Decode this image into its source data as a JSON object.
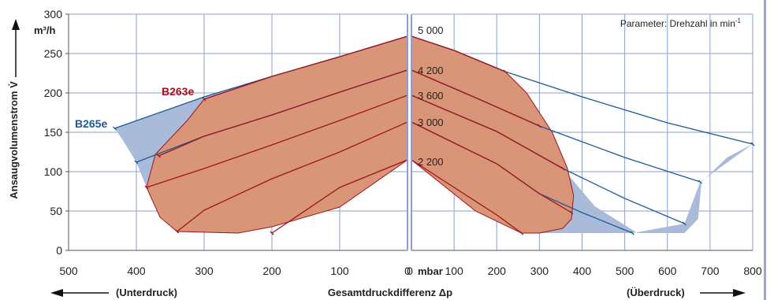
{
  "chart_data": {
    "type": "area",
    "ylabel": "Ansaugvolumenstrom V̇",
    "yunit": "m³/h",
    "xlabel": "Gesamtdruckdifferenz Δp",
    "xunit": "mbar",
    "ylim": [
      0,
      300
    ],
    "yticks": [
      0,
      50,
      100,
      150,
      200,
      250,
      300
    ],
    "left_panel": {
      "label": "(Unterdruck)",
      "xlim": [
        500,
        0
      ],
      "xticks": [
        500,
        400,
        300,
        200,
        100,
        0
      ]
    },
    "right_panel": {
      "label": "(Überdruck)",
      "xlim": [
        0,
        800
      ],
      "xticks": [
        0,
        100,
        200,
        300,
        400,
        500,
        600,
        700,
        800
      ]
    },
    "parameter_note": "Parameter: Drehzahl in min",
    "parameter_note_sup": "-1",
    "grid": true,
    "colors": {
      "B265e": "#1d5a9a",
      "B263e": "#a0141e",
      "B265e_fill": "#aabbd9",
      "B263e_fill": "#d99577",
      "grid": "#8f9fd0",
      "axis": "#555555"
    },
    "speed_labels": [
      {
        "text": "5 000",
        "y": 272
      },
      {
        "text": "4 200",
        "y": 229
      },
      {
        "text": "3 600",
        "y": 197
      },
      {
        "text": "3 000",
        "y": 163
      },
      {
        "text": "2 200",
        "y": 113
      }
    ],
    "series": [
      {
        "name": "B265e",
        "side": "vacuum",
        "region": [
          [
            0,
            272
          ],
          [
            100,
            246
          ],
          [
            200,
            221
          ],
          [
            300,
            195
          ],
          [
            432,
            155
          ],
          [
            420,
            140
          ],
          [
            400,
            112
          ],
          [
            385,
            80
          ],
          [
            365,
            42
          ],
          [
            340,
            24
          ],
          [
            250,
            22
          ],
          [
            200,
            30
          ],
          [
            100,
            55
          ],
          [
            0,
            115
          ]
        ],
        "lines": [
          {
            "speed": 5000,
            "points": [
              [
                0,
                272
              ],
              [
                100,
                246
              ],
              [
                200,
                221
              ],
              [
                300,
                195
              ],
              [
                432,
                155
              ]
            ]
          },
          {
            "speed": 4200,
            "points": [
              [
                0,
                229
              ],
              [
                100,
                201
              ],
              [
                200,
                172
              ],
              [
                300,
                145
              ],
              [
                400,
                112
              ]
            ]
          }
        ]
      },
      {
        "name": "B263e",
        "side": "vacuum",
        "region": [
          [
            0,
            272
          ],
          [
            100,
            246
          ],
          [
            200,
            221
          ],
          [
            300,
            192
          ],
          [
            325,
            165
          ],
          [
            372,
            122
          ],
          [
            385,
            80
          ],
          [
            365,
            42
          ],
          [
            340,
            24
          ],
          [
            250,
            22
          ],
          [
            200,
            30
          ],
          [
            100,
            55
          ],
          [
            0,
            115
          ]
        ],
        "lines": [
          {
            "speed": 5000,
            "points": [
              [
                0,
                272
              ],
              [
                100,
                246
              ],
              [
                200,
                221
              ],
              [
                300,
                192
              ]
            ]
          },
          {
            "speed": 4200,
            "points": [
              [
                0,
                229
              ],
              [
                100,
                201
              ],
              [
                200,
                172
              ],
              [
                300,
                145
              ],
              [
                367,
                120
              ]
            ]
          },
          {
            "speed": 3600,
            "points": [
              [
                0,
                197
              ],
              [
                100,
                165
              ],
              [
                200,
                134
              ],
              [
                300,
                104
              ],
              [
                385,
                80
              ]
            ]
          },
          {
            "speed": 3000,
            "points": [
              [
                0,
                163
              ],
              [
                100,
                125
              ],
              [
                200,
                91
              ],
              [
                300,
                51
              ],
              [
                340,
                24
              ]
            ]
          },
          {
            "speed": 2200,
            "points": [
              [
                0,
                115
              ],
              [
                100,
                80
              ],
              [
                200,
                22
              ]
            ]
          }
        ]
      },
      {
        "name": "B265e",
        "side": "pressure",
        "region": [
          [
            0,
            272
          ],
          [
            220,
            227
          ],
          [
            300,
            158
          ],
          [
            355,
            104
          ],
          [
            430,
            56
          ],
          [
            530,
            22
          ],
          [
            640,
            22
          ],
          [
            672,
            40
          ],
          [
            680,
            87
          ],
          [
            740,
            118
          ],
          [
            800,
            135
          ],
          [
            800,
            135
          ],
          [
            677,
            87
          ],
          [
            640,
            34
          ],
          [
            518,
            22
          ],
          [
            258,
            22
          ],
          [
            0,
            115
          ]
        ],
        "lines": [
          {
            "speed": 5000,
            "points": [
              [
                0,
                272
              ],
              [
                100,
                254
              ],
              [
                220,
                227
              ],
              [
                400,
                195
              ],
              [
                600,
                162
              ],
              [
                800,
                135
              ]
            ]
          },
          {
            "speed": 4200,
            "points": [
              [
                0,
                229
              ],
              [
                150,
                194
              ],
              [
                300,
                158
              ],
              [
                500,
                118
              ],
              [
                677,
                87
              ]
            ]
          },
          {
            "speed": 3600,
            "points": [
              [
                0,
                197
              ],
              [
                200,
                151
              ],
              [
                355,
                104
              ],
              [
                500,
                66
              ],
              [
                640,
                34
              ]
            ]
          },
          {
            "speed": 3000,
            "points": [
              [
                0,
                163
              ],
              [
                200,
                110
              ],
              [
                300,
                72
              ],
              [
                400,
                48
              ],
              [
                518,
                22
              ]
            ]
          }
        ]
      },
      {
        "name": "B263e",
        "side": "pressure",
        "region": [
          [
            0,
            272
          ],
          [
            100,
            254
          ],
          [
            220,
            227
          ],
          [
            270,
            200
          ],
          [
            330,
            150
          ],
          [
            365,
            105
          ],
          [
            380,
            70
          ],
          [
            375,
            40
          ],
          [
            355,
            28
          ],
          [
            300,
            22
          ],
          [
            258,
            22
          ],
          [
            150,
            50
          ],
          [
            0,
            115
          ]
        ],
        "lines": [
          {
            "speed": 5000,
            "points": [
              [
                0,
                272
              ],
              [
                100,
                254
              ],
              [
                220,
                227
              ]
            ]
          },
          {
            "speed": 4200,
            "points": [
              [
                0,
                229
              ],
              [
                150,
                194
              ],
              [
                300,
                158
              ]
            ]
          },
          {
            "speed": 3600,
            "points": [
              [
                0,
                197
              ],
              [
                200,
                151
              ],
              [
                355,
                104
              ]
            ]
          },
          {
            "speed": 3000,
            "points": [
              [
                0,
                163
              ],
              [
                200,
                110
              ],
              [
                300,
                72
              ],
              [
                375,
                48
              ]
            ]
          },
          {
            "speed": 2200,
            "points": [
              [
                0,
                115
              ],
              [
                100,
                80
              ],
              [
                200,
                45
              ],
              [
                258,
                22
              ]
            ]
          }
        ]
      }
    ],
    "series_labels": [
      {
        "text": "B265e",
        "color": "#1d5a9a"
      },
      {
        "text": "B263e",
        "color": "#a0141e"
      }
    ],
    "unit_left": "m³/h",
    "unit_bottom": "mbar"
  }
}
